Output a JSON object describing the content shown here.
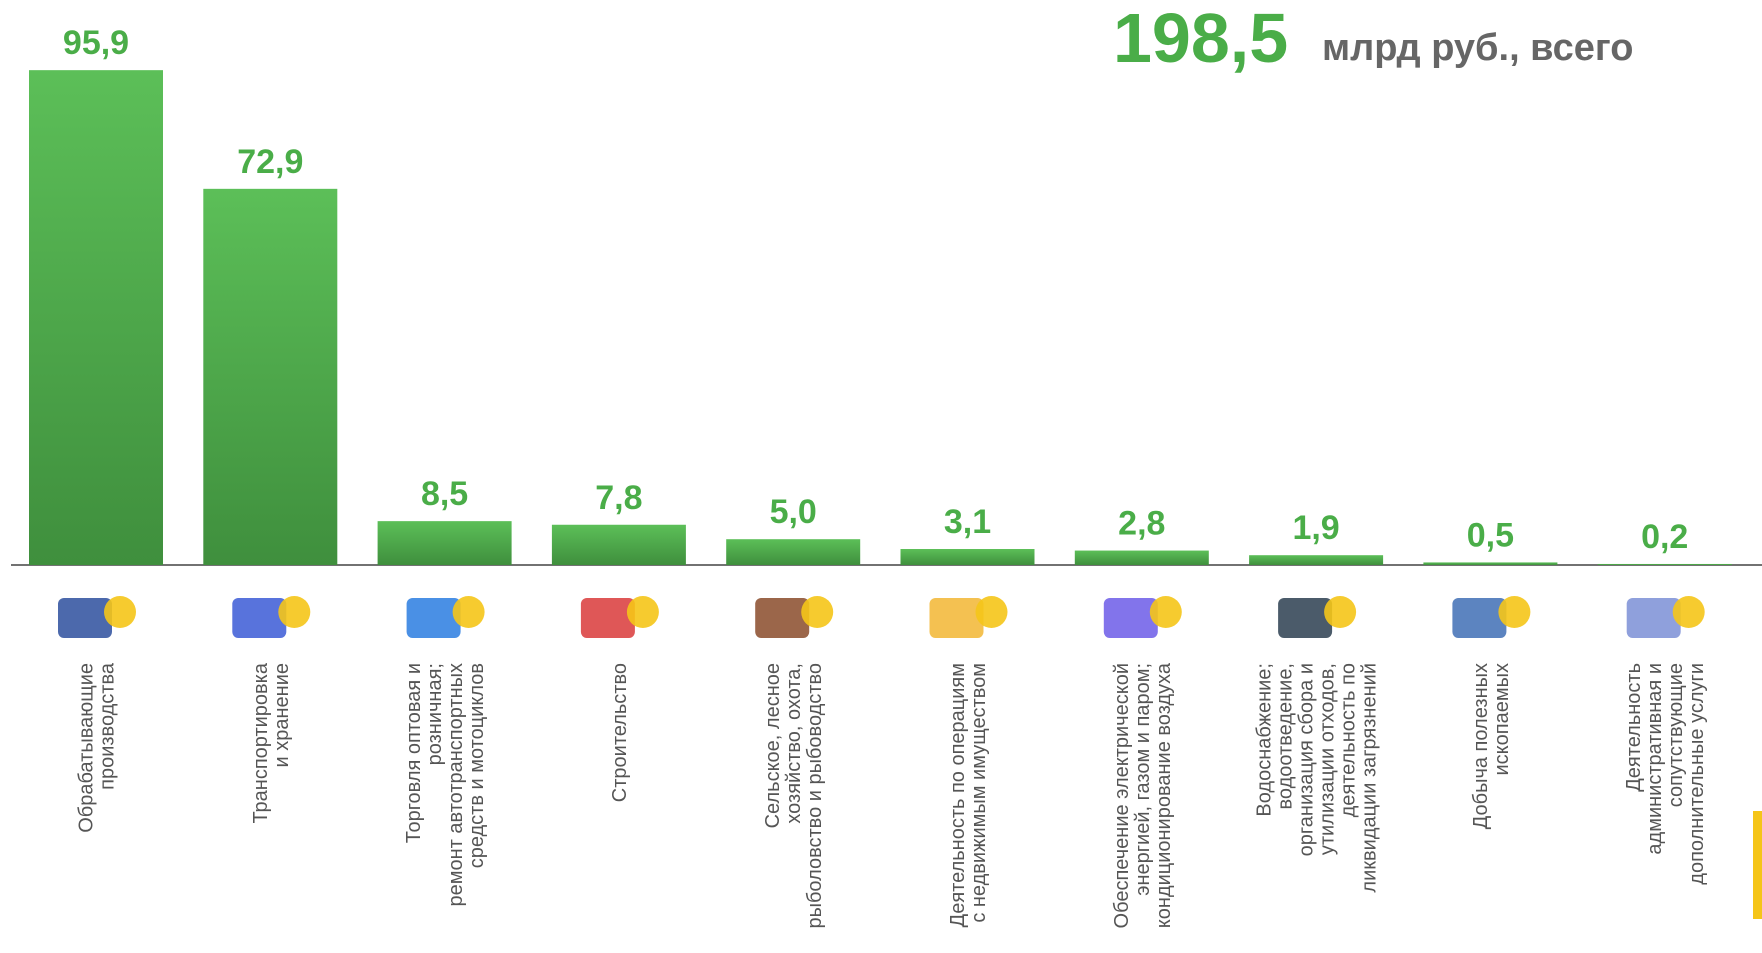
{
  "total_label": "198,5",
  "total_unit": "млрд руб., всего",
  "chart_data": {
    "type": "bar",
    "categories": [
      "Обрабатывающие\nпроизводства",
      "Транспортировка\nи хранение",
      "Торговля оптовая и\nрозничная;\nремонт автотранспортных\nсредств и мотоциклов",
      "Строительство",
      "Сельское, лесное\nхозяйство, охота,\nрыболовство и рыбоводство",
      "Деятельность по операциям\nс недвижимым имуществом",
      "Обеспечение электрической\nэнергией, газом и паром;\nкондиционирование воздуха",
      "Водоснабжение;\nводоотведение,\nорганизация сбора и\nутилизации отходов,\nдеятельность по\nликвидации загрязнений",
      "Добыча полезных\nископаемых",
      "Деятельность\nадминистративная и\nсопутствующие\nдополнительные услуги"
    ],
    "values": [
      95.9,
      72.9,
      8.5,
      7.8,
      5.0,
      3.1,
      2.8,
      1.9,
      0.5,
      0.2
    ],
    "value_labels": [
      "95,9",
      "72,9",
      "8,5",
      "7,8",
      "5,0",
      "3,1",
      "2,8",
      "1,9",
      "0,5",
      "0,2"
    ],
    "color": "#4fae4d",
    "ylim": [
      0,
      100
    ]
  }
}
